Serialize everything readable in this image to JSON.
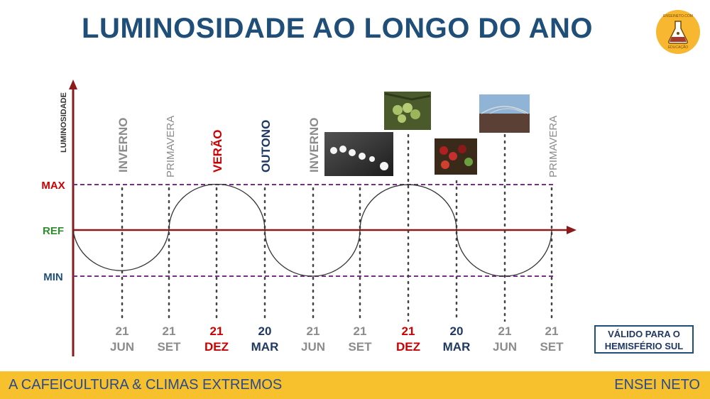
{
  "title": "LUMINOSIDADE AO LONGO DO ANO",
  "logo": {
    "text_top": "ENSEINETO.COM",
    "text_bottom": "EDUCAÇÃO",
    "color": "#f7b731"
  },
  "y_axis_label": "LUMINOSIDADE",
  "levels": [
    {
      "id": "max",
      "label": "MAX",
      "color": "#cc0000"
    },
    {
      "id": "ref",
      "label": "REF",
      "color": "#2e8b2e"
    },
    {
      "id": "min",
      "label": "MIN",
      "color": "#1f4e79"
    }
  ],
  "seasons": [
    {
      "label": "INVERNO",
      "color": "#8c8c8c"
    },
    {
      "label": "PRIMAVERA",
      "color": "#8c8c8c"
    },
    {
      "label": "VERÃO",
      "color": "#cc0000"
    },
    {
      "label": "OUTONO",
      "color": "#1f3864"
    },
    {
      "label": "INVERNO",
      "color": "#8c8c8c"
    },
    {
      "label": "PRIMAVERA",
      "color": "#8c8c8c"
    }
  ],
  "dates": [
    {
      "day": "21",
      "month": "JUN",
      "color": "#8c8c8c"
    },
    {
      "day": "21",
      "month": "SET",
      "color": "#8c8c8c"
    },
    {
      "day": "21",
      "month": "DEZ",
      "color": "#cc0000"
    },
    {
      "day": "20",
      "month": "MAR",
      "color": "#1f3864"
    },
    {
      "day": "21",
      "month": "JUN",
      "color": "#8c8c8c"
    },
    {
      "day": "21",
      "month": "SET",
      "color": "#8c8c8c"
    },
    {
      "day": "21",
      "month": "DEZ",
      "color": "#cc0000"
    },
    {
      "day": "20",
      "month": "MAR",
      "color": "#1f3864"
    },
    {
      "day": "21",
      "month": "JUN",
      "color": "#8c8c8c"
    },
    {
      "day": "21",
      "month": "SET",
      "color": "#8c8c8c"
    }
  ],
  "photos": [
    "coffee-flowers-photo",
    "green-coffee-cherries-photo",
    "ripe-coffee-cherries-photo",
    "drying-yard-photo"
  ],
  "note": {
    "line1": "VÁLIDO PARA O",
    "line2": "HEMISFÉRIO SUL"
  },
  "footer": {
    "left": "A CAFEICULTURA & CLIMAS EXTREMOS",
    "right": "ENSEI NETO",
    "color": "#f6c12c"
  },
  "colors": {
    "axis": "#8b1a1a",
    "guide_dashed": "#7a2d8c",
    "curve": "#333333"
  }
}
